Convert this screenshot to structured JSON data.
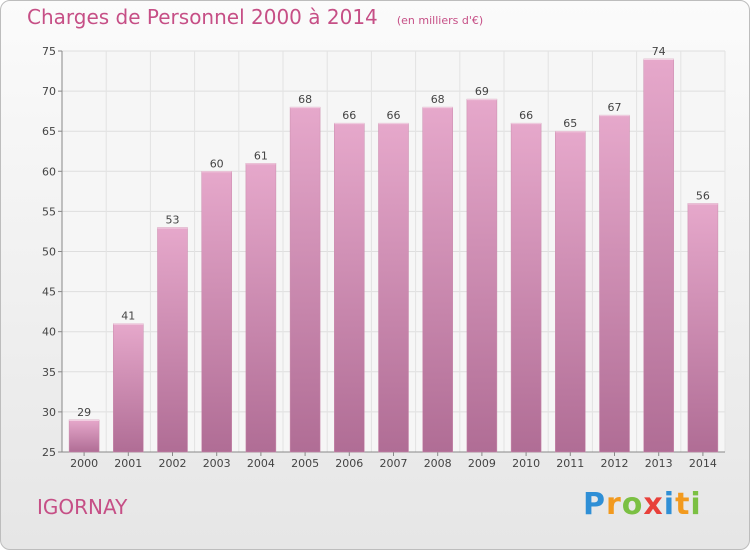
{
  "chart_data": {
    "type": "bar",
    "title": "Charges de Personnel 2000 à 2014",
    "subtitle": "(en milliers d'€)",
    "categories": [
      "2000",
      "2001",
      "2002",
      "2003",
      "2004",
      "2005",
      "2006",
      "2007",
      "2008",
      "2009",
      "2010",
      "2011",
      "2012",
      "2013",
      "2014"
    ],
    "values": [
      29,
      41,
      53,
      60,
      61,
      68,
      66,
      66,
      68,
      69,
      66,
      65,
      67,
      74,
      56
    ],
    "ylim": [
      25,
      75
    ],
    "yticks": [
      25,
      30,
      35,
      40,
      45,
      50,
      55,
      60,
      65,
      70,
      75
    ],
    "grid": true,
    "bar_color": "#d98ab4"
  },
  "place_name": "IGORNAY",
  "logo": {
    "letters": [
      "P",
      "r",
      "o",
      "x",
      "i",
      "t",
      "i"
    ],
    "colors": [
      "#2f8fd6",
      "#f29a1f",
      "#7bc043",
      "#e8403a",
      "#2f8fd6",
      "#f29a1f",
      "#7bc043"
    ]
  }
}
